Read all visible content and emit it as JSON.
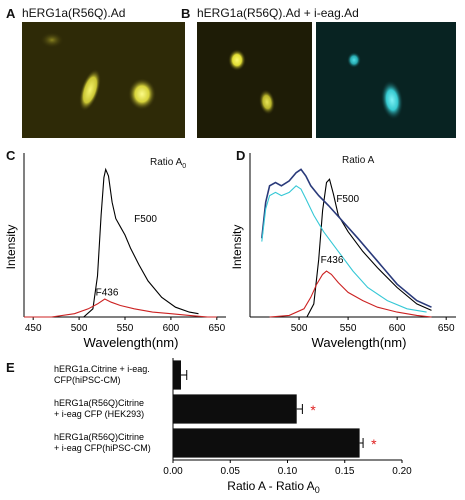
{
  "panels": {
    "A": {
      "letter": "A",
      "title": "hERG1a(R56Q).Ad",
      "image": {
        "bg": "#2e2a07",
        "cells": [
          "#e6e34a",
          "#f4f36a"
        ]
      }
    },
    "B": {
      "letter": "B",
      "title": "hERG1a(R56Q).Ad + i-eag.Ad",
      "images": [
        {
          "bg": "#1e1c06",
          "cells": [
            "#f3ef40",
            "#d9d540"
          ]
        },
        {
          "bg": "#082322",
          "cells": [
            "#35cfd0",
            "#48e8ec"
          ]
        }
      ]
    },
    "C": {
      "letter": "C"
    },
    "D": {
      "letter": "D"
    },
    "E": {
      "letter": "E"
    }
  },
  "chart_data": [
    {
      "id": "C",
      "type": "line",
      "title": "Ratio A0",
      "xlabel": "Wavelength(nm)",
      "ylabel": "Intensity",
      "xlim": [
        440,
        660
      ],
      "xticks": [
        450,
        500,
        550,
        600,
        650
      ],
      "ylim": [
        0,
        1
      ],
      "series": [
        {
          "name": "F500",
          "color": "#000000",
          "x": [
            505,
            515,
            520,
            524,
            527,
            529,
            532,
            536,
            540,
            545,
            550,
            556,
            565,
            575,
            590,
            605,
            620,
            630
          ],
          "y": [
            0.0,
            0.05,
            0.25,
            0.62,
            0.85,
            0.9,
            0.86,
            0.7,
            0.6,
            0.55,
            0.5,
            0.42,
            0.32,
            0.22,
            0.12,
            0.06,
            0.03,
            0.02
          ]
        },
        {
          "name": "F436",
          "color": "#cc2222",
          "x": [
            440,
            470,
            495,
            510,
            520,
            528,
            535,
            545,
            560,
            580,
            600,
            620,
            640,
            650
          ],
          "y": [
            0.0,
            0.0,
            0.02,
            0.05,
            0.08,
            0.11,
            0.09,
            0.07,
            0.05,
            0.03,
            0.02,
            0.01,
            0.0,
            0.0
          ]
        }
      ]
    },
    {
      "id": "D",
      "type": "line",
      "title": "Ratio A",
      "xlabel": "Wavelength(nm)",
      "ylabel": "Intensity",
      "xlim": [
        450,
        660
      ],
      "xticks": [
        500,
        550,
        600,
        650
      ],
      "ylim": [
        0,
        1
      ],
      "series": [
        {
          "name": "F500",
          "color": "#000000",
          "x": [
            508,
            515,
            520,
            524,
            528,
            531,
            535,
            540,
            550,
            565,
            580,
            600,
            620,
            635
          ],
          "y": [
            0.0,
            0.08,
            0.35,
            0.65,
            0.82,
            0.84,
            0.75,
            0.62,
            0.52,
            0.4,
            0.3,
            0.18,
            0.08,
            0.04
          ]
        },
        {
          "name": "",
          "color": "#2a3a7a",
          "x": [
            462,
            466,
            470,
            476,
            482,
            490,
            497,
            502,
            507,
            512,
            520,
            530,
            545,
            560,
            580,
            600,
            620,
            635
          ],
          "y": [
            0.48,
            0.7,
            0.8,
            0.82,
            0.8,
            0.83,
            0.88,
            0.9,
            0.86,
            0.8,
            0.74,
            0.68,
            0.58,
            0.48,
            0.34,
            0.2,
            0.1,
            0.06
          ]
        },
        {
          "name": "",
          "color": "#36c8d6",
          "x": [
            462,
            466,
            470,
            476,
            482,
            490,
            497,
            502,
            507,
            515,
            525,
            540,
            555,
            570,
            590,
            610,
            630
          ],
          "y": [
            0.46,
            0.66,
            0.74,
            0.76,
            0.74,
            0.76,
            0.8,
            0.78,
            0.72,
            0.62,
            0.52,
            0.4,
            0.28,
            0.18,
            0.1,
            0.05,
            0.03
          ]
        },
        {
          "name": "F436",
          "color": "#cc2222",
          "x": [
            470,
            490,
            505,
            512,
            518,
            524,
            528,
            533,
            540,
            550,
            565,
            580,
            600,
            620,
            635
          ],
          "y": [
            0.0,
            0.01,
            0.05,
            0.12,
            0.2,
            0.26,
            0.28,
            0.26,
            0.21,
            0.15,
            0.1,
            0.06,
            0.03,
            0.01,
            0.0
          ]
        }
      ]
    },
    {
      "id": "E",
      "type": "bar",
      "orientation": "horizontal",
      "xlabel": "Ratio A - Ratio A0",
      "xlim": [
        0.0,
        0.2
      ],
      "xticks": [
        "0.00",
        "0.05",
        "0.10",
        "0.15",
        "0.20"
      ],
      "categories": [
        {
          "lines": [
            "hERG1a.Citrine + i-eag.",
            "CFP(hiPSC-CM)"
          ]
        },
        {
          "lines": [
            "hERG1a(R56Q)Citrine",
            "+ i-eag CFP (HEK293)"
          ]
        },
        {
          "lines": [
            "hERG1a(R56Q)Citrine",
            "+ i-eag CFP(hiPSC-CM)"
          ]
        }
      ],
      "values": [
        0.007,
        0.108,
        0.163
      ],
      "errors": [
        0.005,
        0.005,
        0.003
      ],
      "significance": [
        "",
        "*",
        "*"
      ],
      "bar_color": "#0d0d0d",
      "star_color": "#e02020"
    }
  ]
}
